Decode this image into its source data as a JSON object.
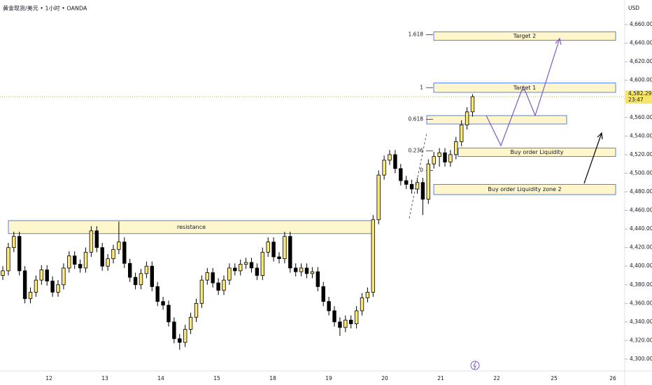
{
  "header": {
    "symbol": "黄金现货/美元 • 1小时 • OANDA",
    "currency": "USD"
  },
  "chart_data": {
    "type": "candlestick",
    "open": [
      4390,
      4395,
      4420,
      4432,
      4395,
      4365,
      4372,
      4385,
      4396,
      4384,
      4372,
      4380,
      4398,
      4411,
      4402,
      4398,
      4415,
      4438,
      4420,
      4400,
      4408,
      4418,
      4426,
      4403,
      4388,
      4380,
      4392,
      4400,
      4378,
      4362,
      4358,
      4340,
      4322,
      4318,
      4332,
      4345,
      4360,
      4385,
      4393,
      4382,
      4374,
      4385,
      4398,
      4395,
      4402,
      4404,
      4398,
      4390,
      4415,
      4426,
      4410,
      4408,
      4432,
      4398,
      4394,
      4398,
      4392,
      4394,
      4378,
      4362,
      4352,
      4340,
      4334,
      4342,
      4338,
      4352,
      4366,
      4372,
      4450,
      4498,
      4514,
      4520,
      4505,
      4492,
      4488,
      4483,
      4490,
      4472,
      4510,
      4518,
      4522,
      4512,
      4520,
      4534,
      4552,
      4566
    ],
    "high": [
      4400,
      4425,
      4437,
      4437,
      4400,
      4377,
      4390,
      4401,
      4401,
      4389,
      4385,
      4403,
      4416,
      4416,
      4407,
      4420,
      4443,
      4443,
      4425,
      4413,
      4423,
      4448,
      4431,
      4408,
      4393,
      4397,
      4405,
      4405,
      4383,
      4367,
      4363,
      4345,
      4327,
      4337,
      4350,
      4365,
      4390,
      4398,
      4398,
      4387,
      4390,
      4403,
      4403,
      4407,
      4409,
      4409,
      4403,
      4420,
      4431,
      4431,
      4415,
      4437,
      4437,
      4403,
      4403,
      4403,
      4399,
      4399,
      4383,
      4367,
      4357,
      4345,
      4347,
      4347,
      4357,
      4371,
      4377,
      4455,
      4503,
      4519,
      4525,
      4525,
      4510,
      4497,
      4493,
      4495,
      4495,
      4515,
      4523,
      4527,
      4527,
      4525,
      4539,
      4557,
      4571,
      4585
    ],
    "low": [
      4385,
      4390,
      4415,
      4390,
      4360,
      4360,
      4367,
      4380,
      4379,
      4367,
      4367,
      4375,
      4393,
      4397,
      4393,
      4393,
      4410,
      4415,
      4395,
      4395,
      4403,
      4413,
      4398,
      4383,
      4375,
      4375,
      4387,
      4373,
      4357,
      4353,
      4335,
      4317,
      4310,
      4313,
      4327,
      4340,
      4355,
      4380,
      4377,
      4369,
      4369,
      4380,
      4390,
      4390,
      4397,
      4393,
      4385,
      4385,
      4410,
      4405,
      4403,
      4403,
      4393,
      4389,
      4389,
      4387,
      4387,
      4373,
      4357,
      4347,
      4335,
      4325,
      4329,
      4333,
      4333,
      4347,
      4361,
      4367,
      4445,
      4493,
      4509,
      4500,
      4487,
      4483,
      4478,
      4478,
      4455,
      4467,
      4505,
      4507,
      4507,
      4507,
      4515,
      4529,
      4547,
      4561
    ],
    "close": [
      4395,
      4420,
      4432,
      4395,
      4365,
      4372,
      4385,
      4396,
      4384,
      4372,
      4380,
      4398,
      4411,
      4402,
      4398,
      4415,
      4438,
      4420,
      4400,
      4408,
      4418,
      4426,
      4403,
      4388,
      4380,
      4392,
      4400,
      4378,
      4362,
      4358,
      4340,
      4322,
      4318,
      4332,
      4345,
      4360,
      4385,
      4393,
      4382,
      4374,
      4385,
      4398,
      4395,
      4402,
      4404,
      4398,
      4390,
      4415,
      4426,
      4410,
      4408,
      4432,
      4398,
      4394,
      4398,
      4392,
      4394,
      4378,
      4362,
      4352,
      4340,
      4334,
      4342,
      4338,
      4352,
      4366,
      4372,
      4450,
      4498,
      4514,
      4520,
      4505,
      4492,
      4488,
      4483,
      4490,
      4472,
      4510,
      4518,
      4522,
      4512,
      4520,
      4534,
      4552,
      4566,
      4582.295
    ],
    "last_price_label": "4,582.295",
    "countdown": "23:47",
    "ylim": [
      4300,
      4660
    ],
    "yticks": [
      {
        "value": 4300,
        "label": "4,300.000"
      },
      {
        "value": 4320,
        "label": "4,320.000"
      },
      {
        "value": 4340,
        "label": "4,340.000"
      },
      {
        "value": 4360,
        "label": "4,360.000"
      },
      {
        "value": 4380,
        "label": "4,380.000"
      },
      {
        "value": 4400,
        "label": "4,400.000"
      },
      {
        "value": 4420,
        "label": "4,420.000"
      },
      {
        "value": 4440,
        "label": "4,440.000"
      },
      {
        "value": 4460,
        "label": "4,460.000"
      },
      {
        "value": 4480,
        "label": "4,480.000"
      },
      {
        "value": 4500,
        "label": "4,500.000"
      },
      {
        "value": 4520,
        "label": "4,520.000"
      },
      {
        "value": 4540,
        "label": "4,540.000"
      },
      {
        "value": 4560,
        "label": "4,560.000"
      },
      {
        "value": 4580,
        "label": "4,580.000"
      },
      {
        "value": 4600,
        "label": "4,600.000"
      },
      {
        "value": 4620,
        "label": "4,620.000"
      },
      {
        "value": 4640,
        "label": "4,640.000"
      },
      {
        "value": 4660,
        "label": "4,660.000"
      }
    ],
    "x_labels": [
      "12",
      "13",
      "14",
      "15",
      "18",
      "19",
      "20",
      "21",
      "22",
      "25",
      "26"
    ],
    "zones": [
      {
        "label": "resistance",
        "top": 4449,
        "bottom": 4435
      },
      {
        "label": "Target 2",
        "top": 4652,
        "bottom": 4643
      },
      {
        "label": "Target 1",
        "top": 4597,
        "bottom": 4587
      },
      {
        "label": "Buy order Liquidity",
        "top": 4527,
        "bottom": 4518
      },
      {
        "label": "Buy order Liquidity zone 2",
        "top": 4488,
        "bottom": 4477
      },
      {
        "label": null,
        "top": 4562,
        "bottom": 4553
      }
    ],
    "fib_levels": [
      {
        "label": "1.618",
        "value": 4649
      },
      {
        "label": "1",
        "value": 4592
      },
      {
        "label": "0.618",
        "value": 4558
      },
      {
        "label": "0.236",
        "value": 4524
      },
      {
        "label": "0",
        "value": 4503
      }
    ]
  }
}
